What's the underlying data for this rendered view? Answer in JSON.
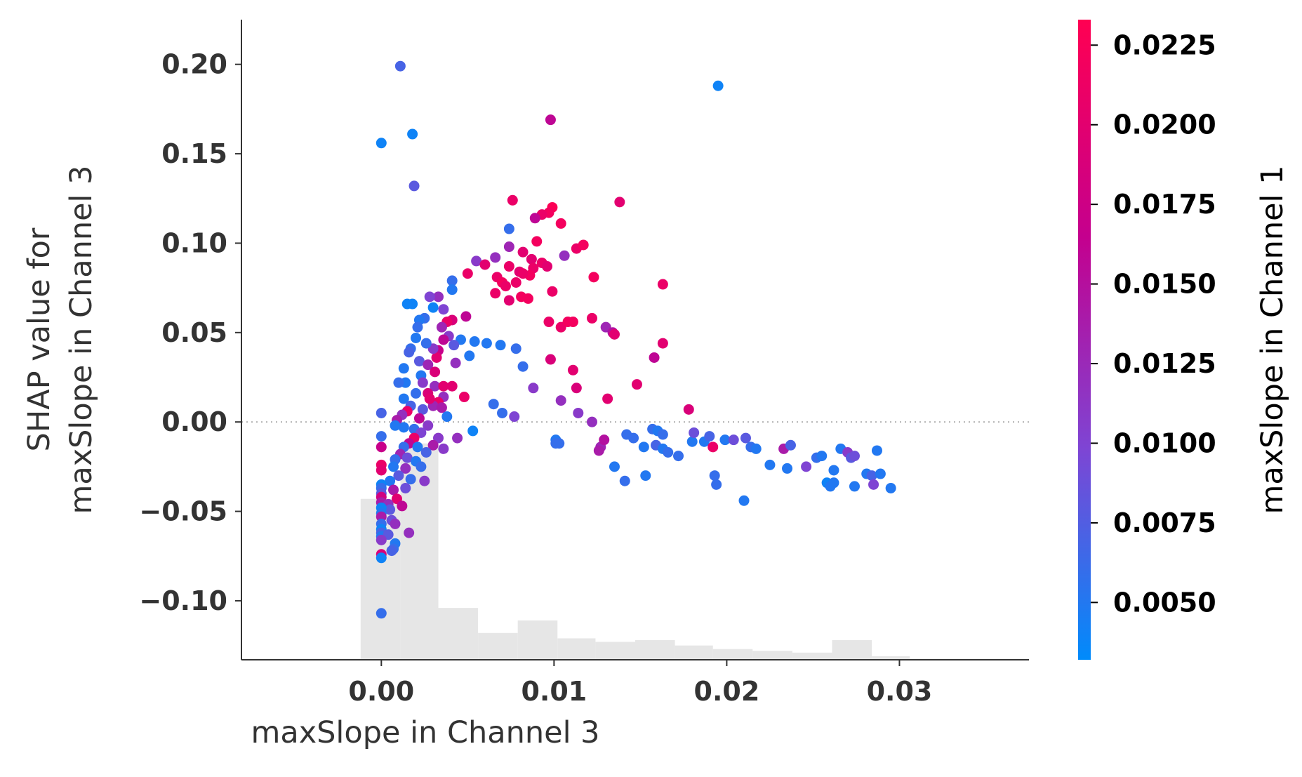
{
  "chart_data": {
    "type": "scatter",
    "xlabel": "maxSlope in Channel 3",
    "ylabel": [
      "SHAP value for",
      "maxSlope in Channel 3"
    ],
    "xlim": [
      -0.0081,
      0.0375
    ],
    "ylim": [
      -0.133,
      0.225
    ],
    "x_ticks": [
      0.0,
      0.01,
      0.02,
      0.03
    ],
    "x_tick_labels": [
      "0.00",
      "0.01",
      "0.02",
      "0.03"
    ],
    "y_ticks": [
      -0.1,
      -0.05,
      0.0,
      0.05,
      0.1,
      0.15,
      0.2
    ],
    "y_tick_labels": [
      "−0.10",
      "−0.05",
      "0.00",
      "0.05",
      "0.10",
      "0.15",
      "0.20"
    ],
    "zero_line": true,
    "grid": false,
    "colorbar": {
      "label": "maxSlope in Channel 1",
      "range": [
        0.0032,
        0.0233
      ],
      "ticks": [
        0.005,
        0.0075,
        0.01,
        0.0125,
        0.015,
        0.0175,
        0.02,
        0.0225
      ],
      "tick_labels": [
        "0.0050",
        "0.0075",
        "0.0100",
        "0.0125",
        "0.0150",
        "0.0175",
        "0.0200",
        "0.0225"
      ],
      "colors": [
        "#008bfb",
        "#7e45d4",
        "#c4008e",
        "#ff0052"
      ]
    },
    "histogram": {
      "color": "#e6e6e6",
      "bins": [
        {
          "x0": -0.0012,
          "x1": 0.0011,
          "height": 0.09
        },
        {
          "x0": 0.0011,
          "x1": 0.0033,
          "height": 0.121
        },
        {
          "x0": 0.0033,
          "x1": 0.0056,
          "height": 0.029
        },
        {
          "x0": 0.0056,
          "x1": 0.0079,
          "height": 0.015
        },
        {
          "x0": 0.0079,
          "x1": 0.0102,
          "height": 0.022
        },
        {
          "x0": 0.0102,
          "x1": 0.0124,
          "height": 0.012
        },
        {
          "x0": 0.0124,
          "x1": 0.0147,
          "height": 0.01
        },
        {
          "x0": 0.0147,
          "x1": 0.017,
          "height": 0.011
        },
        {
          "x0": 0.017,
          "x1": 0.0192,
          "height": 0.008
        },
        {
          "x0": 0.0192,
          "x1": 0.0215,
          "height": 0.006
        },
        {
          "x0": 0.0215,
          "x1": 0.0238,
          "height": 0.005
        },
        {
          "x0": 0.0238,
          "x1": 0.0261,
          "height": 0.004
        },
        {
          "x0": 0.0261,
          "x1": 0.0284,
          "height": 0.011
        },
        {
          "x0": 0.0284,
          "x1": 0.0306,
          "height": 0.002
        }
      ]
    },
    "points": [
      [
        0.0011,
        0.199,
        0.007
      ],
      [
        0.0,
        0.156,
        0.004
      ],
      [
        0.0018,
        0.161,
        0.004
      ],
      [
        0.0019,
        0.132,
        0.008
      ],
      [
        0.0195,
        0.188,
        0.004
      ],
      [
        0.0098,
        0.169,
        0.016
      ],
      [
        0.0076,
        0.124,
        0.021
      ],
      [
        0.0099,
        0.12,
        0.023
      ],
      [
        0.0097,
        0.117,
        0.022
      ],
      [
        0.0093,
        0.116,
        0.021
      ],
      [
        0.0089,
        0.114,
        0.016
      ],
      [
        0.0138,
        0.123,
        0.02
      ],
      [
        0.0074,
        0.108,
        0.006
      ],
      [
        0.0104,
        0.111,
        0.022
      ],
      [
        0.0074,
        0.098,
        0.013
      ],
      [
        0.009,
        0.101,
        0.022
      ],
      [
        0.0082,
        0.095,
        0.02
      ],
      [
        0.0066,
        0.092,
        0.012
      ],
      [
        0.0055,
        0.09,
        0.011
      ],
      [
        0.0113,
        0.097,
        0.021
      ],
      [
        0.0117,
        0.099,
        0.022
      ],
      [
        0.0106,
        0.093,
        0.012
      ],
      [
        0.0087,
        0.091,
        0.02
      ],
      [
        0.0093,
        0.089,
        0.021
      ],
      [
        0.0096,
        0.087,
        0.02
      ],
      [
        0.0088,
        0.086,
        0.021
      ],
      [
        0.008,
        0.084,
        0.02
      ],
      [
        0.0086,
        0.082,
        0.022
      ],
      [
        0.0074,
        0.087,
        0.021
      ],
      [
        0.0067,
        0.081,
        0.021
      ],
      [
        0.006,
        0.088,
        0.02
      ],
      [
        0.007,
        0.078,
        0.022
      ],
      [
        0.0072,
        0.076,
        0.021
      ],
      [
        0.0078,
        0.078,
        0.021
      ],
      [
        0.0082,
        0.083,
        0.021
      ],
      [
        0.005,
        0.083,
        0.021
      ],
      [
        0.0123,
        0.081,
        0.022
      ],
      [
        0.0163,
        0.077,
        0.021
      ],
      [
        0.0099,
        0.073,
        0.021
      ],
      [
        0.0085,
        0.069,
        0.022
      ],
      [
        0.0066,
        0.072,
        0.021
      ],
      [
        0.0074,
        0.068,
        0.02
      ],
      [
        0.0081,
        0.07,
        0.022
      ],
      [
        0.0041,
        0.079,
        0.006
      ],
      [
        0.0041,
        0.074,
        0.005
      ],
      [
        0.0033,
        0.07,
        0.012
      ],
      [
        0.0028,
        0.07,
        0.01
      ],
      [
        0.0018,
        0.066,
        0.004
      ],
      [
        0.0015,
        0.066,
        0.004
      ],
      [
        0.003,
        0.064,
        0.004
      ],
      [
        0.0036,
        0.063,
        0.01
      ],
      [
        0.0049,
        0.059,
        0.016
      ],
      [
        0.0041,
        0.057,
        0.019
      ],
      [
        0.0038,
        0.056,
        0.021
      ],
      [
        0.0025,
        0.058,
        0.006
      ],
      [
        0.0022,
        0.057,
        0.005
      ],
      [
        0.0021,
        0.053,
        0.006
      ],
      [
        0.0035,
        0.053,
        0.013
      ],
      [
        0.0039,
        0.048,
        0.011
      ],
      [
        0.0046,
        0.046,
        0.005
      ],
      [
        0.0054,
        0.045,
        0.005
      ],
      [
        0.0061,
        0.044,
        0.005
      ],
      [
        0.0069,
        0.043,
        0.005
      ],
      [
        0.0078,
        0.041,
        0.006
      ],
      [
        0.0051,
        0.037,
        0.005
      ],
      [
        0.0043,
        0.033,
        0.012
      ],
      [
        0.0042,
        0.043,
        0.008
      ],
      [
        0.0033,
        0.04,
        0.017
      ],
      [
        0.0036,
        0.046,
        0.016
      ],
      [
        0.0032,
        0.036,
        0.02
      ],
      [
        0.003,
        0.041,
        0.011
      ],
      [
        0.0026,
        0.044,
        0.006
      ],
      [
        0.002,
        0.047,
        0.005
      ],
      [
        0.0017,
        0.041,
        0.006
      ],
      [
        0.0016,
        0.039,
        0.007
      ],
      [
        0.0022,
        0.034,
        0.008
      ],
      [
        0.0027,
        0.032,
        0.013
      ],
      [
        0.0031,
        0.028,
        0.019
      ],
      [
        0.0023,
        0.026,
        0.005
      ],
      [
        0.0013,
        0.03,
        0.005
      ],
      [
        0.0014,
        0.022,
        0.005
      ],
      [
        0.001,
        0.022,
        0.006
      ],
      [
        0.0024,
        0.022,
        0.011
      ],
      [
        0.0031,
        0.02,
        0.012
      ],
      [
        0.0036,
        0.02,
        0.02
      ],
      [
        0.0027,
        0.016,
        0.019
      ],
      [
        0.0036,
        0.014,
        0.012
      ],
      [
        0.0033,
        0.011,
        0.021
      ],
      [
        0.003,
        0.009,
        0.013
      ],
      [
        0.0035,
        0.008,
        0.014
      ],
      [
        0.0041,
        0.02,
        0.02
      ],
      [
        0.0048,
        0.014,
        0.021
      ],
      [
        0.002,
        0.016,
        0.006
      ],
      [
        0.0013,
        0.013,
        0.005
      ],
      [
        0.0017,
        0.009,
        0.007
      ],
      [
        0.0024,
        0.007,
        0.008
      ],
      [
        0.0028,
        0.013,
        0.02
      ],
      [
        0.0038,
        0.003,
        0.005
      ],
      [
        0.0015,
        0.006,
        0.021
      ],
      [
        0.0012,
        0.004,
        0.012
      ],
      [
        0.0009,
        0.001,
        0.014
      ],
      [
        0.0,
        0.005,
        0.007
      ],
      [
        0.0022,
        0.002,
        0.016
      ],
      [
        0.0027,
        -0.002,
        0.011
      ],
      [
        0.0013,
        -0.003,
        0.005
      ],
      [
        0.0008,
        -0.002,
        0.005
      ],
      [
        0.0019,
        -0.004,
        0.006
      ],
      [
        0.0023,
        -0.006,
        0.01
      ],
      [
        0.0033,
        -0.009,
        0.011
      ],
      [
        0.0044,
        -0.009,
        0.012
      ],
      [
        0.003,
        -0.013,
        0.014
      ],
      [
        0.0036,
        -0.015,
        0.011
      ],
      [
        0.0019,
        -0.009,
        0.021
      ],
      [
        0.0016,
        -0.012,
        0.016
      ],
      [
        0.0021,
        -0.014,
        0.005
      ],
      [
        0.0013,
        -0.014,
        0.006
      ],
      [
        0.0026,
        -0.017,
        0.007
      ],
      [
        0.0011,
        -0.018,
        0.013
      ],
      [
        0.0015,
        -0.02,
        0.009
      ],
      [
        0.0008,
        -0.021,
        0.006
      ],
      [
        0.002,
        -0.022,
        0.005
      ],
      [
        0.0023,
        -0.025,
        0.006
      ],
      [
        0.0014,
        -0.026,
        0.012
      ],
      [
        0.0007,
        -0.025,
        0.005
      ],
      [
        0.0,
        -0.024,
        0.021
      ],
      [
        0.0,
        -0.027,
        0.02
      ],
      [
        0.0,
        -0.014,
        0.017
      ],
      [
        0.0,
        -0.008,
        0.006
      ],
      [
        0.001,
        -0.03,
        0.008
      ],
      [
        0.0017,
        -0.032,
        0.006
      ],
      [
        0.0025,
        -0.033,
        0.011
      ],
      [
        0.0005,
        -0.033,
        0.005
      ],
      [
        0.0,
        -0.035,
        0.004
      ],
      [
        0.0,
        -0.037,
        0.006
      ],
      [
        0.0,
        -0.04,
        0.008
      ],
      [
        0.0007,
        -0.038,
        0.014
      ],
      [
        0.0014,
        -0.037,
        0.009
      ],
      [
        0.0009,
        -0.043,
        0.02
      ],
      [
        0.0,
        -0.042,
        0.018
      ],
      [
        0.0,
        -0.045,
        0.014
      ],
      [
        0.0004,
        -0.046,
        0.012
      ],
      [
        0.0012,
        -0.047,
        0.016
      ],
      [
        0.0005,
        -0.049,
        0.008
      ],
      [
        0.0,
        -0.048,
        0.004
      ],
      [
        0.0,
        -0.051,
        0.005
      ],
      [
        0.0,
        -0.053,
        0.014
      ],
      [
        0.0006,
        -0.055,
        0.009
      ],
      [
        0.0,
        -0.057,
        0.006
      ],
      [
        0.0,
        -0.06,
        0.004
      ],
      [
        0.0008,
        -0.057,
        0.012
      ],
      [
        0.0,
        -0.062,
        0.007
      ],
      [
        0.0,
        -0.064,
        0.005
      ],
      [
        0.0004,
        -0.063,
        0.008
      ],
      [
        0.0016,
        -0.062,
        0.012
      ],
      [
        0.0,
        -0.066,
        0.011
      ],
      [
        0.0008,
        -0.068,
        0.005
      ],
      [
        0.0007,
        -0.071,
        0.006
      ],
      [
        0.0,
        -0.074,
        0.019
      ],
      [
        0.0,
        -0.076,
        0.004
      ],
      [
        0.0006,
        -0.072,
        0.007
      ],
      [
        0.0,
        -0.107,
        0.006
      ],
      [
        0.0111,
        0.056,
        0.022
      ],
      [
        0.0097,
        0.056,
        0.021
      ],
      [
        0.0104,
        0.053,
        0.021
      ],
      [
        0.0108,
        0.056,
        0.022
      ],
      [
        0.0122,
        0.058,
        0.021
      ],
      [
        0.013,
        0.053,
        0.013
      ],
      [
        0.0134,
        0.05,
        0.015
      ],
      [
        0.0135,
        0.049,
        0.02
      ],
      [
        0.0163,
        0.044,
        0.02
      ],
      [
        0.0158,
        0.036,
        0.016
      ],
      [
        0.0098,
        0.035,
        0.019
      ],
      [
        0.0082,
        0.031,
        0.006
      ],
      [
        0.0111,
        0.029,
        0.02
      ],
      [
        0.0088,
        0.019,
        0.011
      ],
      [
        0.0113,
        0.019,
        0.019
      ],
      [
        0.0148,
        0.021,
        0.02
      ],
      [
        0.0131,
        0.013,
        0.02
      ],
      [
        0.0104,
        0.012,
        0.012
      ],
      [
        0.007,
        0.005,
        0.006
      ],
      [
        0.0077,
        0.003,
        0.01
      ],
      [
        0.0114,
        0.005,
        0.011
      ],
      [
        0.0122,
        0.0,
        0.012
      ],
      [
        0.0178,
        0.007,
        0.019
      ],
      [
        0.0101,
        -0.01,
        0.005
      ],
      [
        0.0103,
        -0.012,
        0.006
      ],
      [
        0.0127,
        -0.014,
        0.013
      ],
      [
        0.0129,
        -0.01,
        0.015
      ],
      [
        0.0142,
        -0.007,
        0.006
      ],
      [
        0.0146,
        -0.009,
        0.006
      ],
      [
        0.0157,
        -0.004,
        0.006
      ],
      [
        0.016,
        -0.005,
        0.005
      ],
      [
        0.0163,
        -0.007,
        0.006
      ],
      [
        0.0159,
        -0.013,
        0.007
      ],
      [
        0.0163,
        -0.015,
        0.005
      ],
      [
        0.0166,
        -0.017,
        0.006
      ],
      [
        0.0152,
        -0.014,
        0.005
      ],
      [
        0.0172,
        -0.019,
        0.006
      ],
      [
        0.018,
        -0.011,
        0.005
      ],
      [
        0.0181,
        -0.006,
        0.009
      ],
      [
        0.0187,
        -0.011,
        0.005
      ],
      [
        0.019,
        -0.008,
        0.007
      ],
      [
        0.0192,
        -0.014,
        0.021
      ],
      [
        0.0199,
        -0.01,
        0.005
      ],
      [
        0.0204,
        -0.01,
        0.009
      ],
      [
        0.0211,
        -0.009,
        0.008
      ],
      [
        0.0214,
        -0.014,
        0.006
      ],
      [
        0.0217,
        -0.015,
        0.005
      ],
      [
        0.0193,
        -0.03,
        0.006
      ],
      [
        0.0194,
        -0.035,
        0.006
      ],
      [
        0.021,
        -0.044,
        0.005
      ],
      [
        0.0225,
        -0.024,
        0.005
      ],
      [
        0.0233,
        -0.015,
        0.014
      ],
      [
        0.0235,
        -0.026,
        0.005
      ],
      [
        0.0237,
        -0.013,
        0.007
      ],
      [
        0.0246,
        -0.025,
        0.01
      ],
      [
        0.0252,
        -0.02,
        0.006
      ],
      [
        0.0255,
        -0.019,
        0.005
      ],
      [
        0.0258,
        -0.034,
        0.004
      ],
      [
        0.026,
        -0.036,
        0.005
      ],
      [
        0.0262,
        -0.034,
        0.005
      ],
      [
        0.0262,
        -0.027,
        0.005
      ],
      [
        0.0266,
        -0.015,
        0.005
      ],
      [
        0.027,
        -0.017,
        0.011
      ],
      [
        0.0272,
        -0.02,
        0.008
      ],
      [
        0.0274,
        -0.019,
        0.009
      ],
      [
        0.0274,
        -0.036,
        0.005
      ],
      [
        0.0281,
        -0.029,
        0.005
      ],
      [
        0.0284,
        -0.03,
        0.007
      ],
      [
        0.0285,
        -0.035,
        0.01
      ],
      [
        0.0287,
        -0.016,
        0.005
      ],
      [
        0.0289,
        -0.029,
        0.005
      ],
      [
        0.0295,
        -0.037,
        0.005
      ],
      [
        0.0141,
        -0.033,
        0.006
      ],
      [
        0.0135,
        -0.025,
        0.005
      ],
      [
        0.0153,
        -0.03,
        0.005
      ],
      [
        0.0101,
        -0.012,
        0.006
      ],
      [
        0.0126,
        -0.016,
        0.014
      ],
      [
        0.0065,
        0.01,
        0.006
      ],
      [
        0.0053,
        -0.005,
        0.004
      ]
    ]
  }
}
